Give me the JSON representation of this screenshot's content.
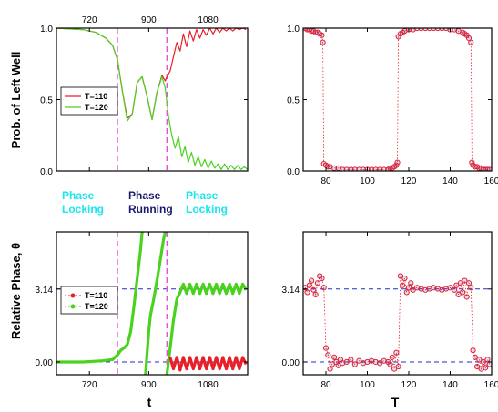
{
  "figure": {
    "top_left_ylabel": "Prob. of Left Well",
    "bottom_left_ylabel": "Relative Phase, θ",
    "bottom_left_xlabel": "t",
    "bottom_right_xlabel": "T"
  },
  "annotations": [
    {
      "lines": [
        "Phase",
        "Locking"
      ],
      "color": "#19e6ee"
    },
    {
      "lines": [
        "Phase",
        "Running"
      ],
      "color": "#1a1a6e"
    },
    {
      "lines": [
        "Phase",
        "Locking"
      ],
      "color": "#19e6ee"
    }
  ],
  "colors": {
    "red": "#e8202a",
    "green": "#4ad21e",
    "magenta": "#e84fd8",
    "blue": "#1f2fd0",
    "marker_fill": "#1f2fd0"
  },
  "chart_data": [
    {
      "id": "top-left",
      "type": "line",
      "xlim": [
        620,
        1200
      ],
      "ylim": [
        0,
        1
      ],
      "xticks_top": [
        720,
        900,
        1080
      ],
      "yticks": [
        {
          "v": 0,
          "label": "0.0"
        },
        {
          "v": 0.5,
          "label": "0.5"
        },
        {
          "v": 1,
          "label": "1.0"
        }
      ],
      "vlines": [
        805,
        955
      ],
      "legend": [
        {
          "name": "T=110",
          "color": "#e8202a"
        },
        {
          "name": "T=120",
          "color": "#4ad21e"
        }
      ],
      "series": [
        {
          "name": "T=110",
          "color": "#e8202a",
          "x": [
            620,
            700,
            740,
            770,
            790,
            805,
            820,
            835,
            850,
            865,
            880,
            895,
            910,
            925,
            940,
            950,
            955,
            965,
            975,
            985,
            995,
            1005,
            1015,
            1025,
            1035,
            1045,
            1055,
            1065,
            1075,
            1085,
            1095,
            1105,
            1115,
            1125,
            1135,
            1145,
            1155,
            1165,
            1175,
            1185,
            1195
          ],
          "y": [
            1.0,
            0.99,
            0.97,
            0.93,
            0.88,
            0.78,
            0.56,
            0.37,
            0.4,
            0.62,
            0.66,
            0.52,
            0.36,
            0.55,
            0.67,
            0.63,
            0.66,
            0.7,
            0.8,
            0.9,
            0.84,
            0.96,
            0.87,
            0.98,
            0.91,
            0.99,
            0.93,
            0.99,
            0.95,
            1.0,
            0.96,
            1.0,
            0.97,
            1.0,
            0.98,
            1.0,
            0.98,
            1.0,
            0.99,
            1.0,
            0.99
          ]
        },
        {
          "name": "T=120",
          "color": "#4ad21e",
          "x": [
            620,
            700,
            740,
            770,
            790,
            805,
            820,
            835,
            850,
            865,
            880,
            895,
            910,
            925,
            940,
            950,
            960,
            970,
            980,
            990,
            1000,
            1010,
            1020,
            1030,
            1040,
            1050,
            1060,
            1070,
            1080,
            1090,
            1100,
            1110,
            1120,
            1130,
            1140,
            1150,
            1160,
            1170,
            1180,
            1190,
            1200
          ],
          "y": [
            1.0,
            0.99,
            0.97,
            0.93,
            0.88,
            0.78,
            0.56,
            0.35,
            0.4,
            0.62,
            0.66,
            0.52,
            0.36,
            0.55,
            0.66,
            0.58,
            0.38,
            0.25,
            0.16,
            0.24,
            0.1,
            0.17,
            0.06,
            0.13,
            0.04,
            0.1,
            0.03,
            0.08,
            0.02,
            0.07,
            0.02,
            0.05,
            0.01,
            0.05,
            0.01,
            0.04,
            0.01,
            0.04,
            0.01,
            0.03,
            0.01
          ]
        }
      ]
    },
    {
      "id": "bottom-left",
      "type": "line",
      "xlim": [
        620,
        1200
      ],
      "ylim": [
        -0.55,
        5.6
      ],
      "xticks": [
        720,
        900,
        1080
      ],
      "yticks": [
        {
          "v": 0,
          "label": "0.00"
        },
        {
          "v": 3.14,
          "label": "3.14"
        }
      ],
      "hlines": [
        0,
        3.14
      ],
      "vlines": [
        805,
        955
      ],
      "legend": [
        {
          "name": "T=110",
          "color": "#e8202a"
        },
        {
          "name": "T=120",
          "color": "#4ad21e"
        }
      ],
      "series": [
        {
          "name": "T=120",
          "color": "#4ad21e",
          "x": [
            620,
            700,
            760,
            790,
            805,
            815,
            825,
            835,
            845,
            855,
            865,
            875,
            880,
            885,
            890,
            895,
            900,
            905,
            915,
            925,
            935,
            945,
            950
          ],
          "y": [
            0.0,
            0.0,
            0.05,
            0.1,
            0.3,
            0.5,
            0.6,
            0.75,
            1.3,
            2.4,
            3.6,
            4.8,
            5.6,
            null,
            -0.55,
            0.4,
            1.3,
            2.0,
            2.7,
            3.5,
            4.4,
            5.3,
            5.6
          ]
        },
        {
          "name": "T=120 (tail)",
          "color": "#4ad21e",
          "x": [
            955,
            965,
            975,
            985,
            995,
            1005,
            1015,
            1025,
            1035,
            1045,
            1055,
            1065,
            1075,
            1085,
            1095,
            1105,
            1115,
            1125,
            1135,
            1145,
            1155,
            1165,
            1175,
            1185,
            1195
          ],
          "y": [
            -0.55,
            0.6,
            1.8,
            2.7,
            3.0,
            3.35,
            2.95,
            3.35,
            2.95,
            3.35,
            2.95,
            3.35,
            2.95,
            3.35,
            2.95,
            3.35,
            2.95,
            3.35,
            2.95,
            3.35,
            2.95,
            3.35,
            2.95,
            3.35,
            3.1
          ]
        },
        {
          "name": "T=110",
          "color": "#e8202a",
          "x": [
            965,
            975,
            985,
            995,
            1005,
            1015,
            1025,
            1035,
            1045,
            1055,
            1065,
            1075,
            1085,
            1095,
            1105,
            1115,
            1125,
            1135,
            1145,
            1155,
            1165,
            1175,
            1185,
            1195
          ],
          "y": [
            0.2,
            -0.3,
            0.2,
            -0.35,
            0.2,
            -0.3,
            0.2,
            -0.3,
            0.2,
            -0.3,
            0.2,
            -0.3,
            0.2,
            -0.3,
            0.2,
            -0.3,
            0.2,
            -0.3,
            0.2,
            -0.3,
            0.2,
            -0.3,
            0.2,
            -0.1
          ]
        }
      ]
    },
    {
      "id": "top-right",
      "type": "scatter",
      "xlim": [
        69,
        160
      ],
      "ylim": [
        0,
        1
      ],
      "xticks": [
        80,
        100,
        120,
        140,
        160
      ],
      "yticks": [
        {
          "v": 0,
          "label": "0.0"
        },
        {
          "v": 0.5,
          "label": "0.5"
        },
        {
          "v": 1,
          "label": "1.0"
        }
      ],
      "series": [
        {
          "name": "points",
          "color": "#e8202a",
          "x": [
            70,
            71,
            72,
            73,
            74,
            75,
            76,
            77,
            78,
            78.5,
            79,
            80,
            81,
            82,
            84,
            86,
            88,
            90,
            92,
            94,
            96,
            98,
            100,
            102,
            104,
            106,
            108,
            110,
            111,
            112,
            113,
            114,
            114.5,
            115,
            116,
            117,
            118,
            120,
            122,
            124,
            126,
            128,
            130,
            132,
            134,
            136,
            138,
            140,
            142,
            144,
            146,
            147,
            148,
            149,
            150,
            150.5,
            151,
            152,
            153,
            154,
            155,
            156,
            157,
            158,
            159
          ],
          "y": [
            1.0,
            0.99,
            0.99,
            0.98,
            0.98,
            0.97,
            0.97,
            0.96,
            0.95,
            0.9,
            0.05,
            0.04,
            0.03,
            0.03,
            0.02,
            0.02,
            0.01,
            0.01,
            0.01,
            0.01,
            0.01,
            0.01,
            0.01,
            0.01,
            0.01,
            0.01,
            0.01,
            0.01,
            0.02,
            0.02,
            0.03,
            0.04,
            0.06,
            0.94,
            0.96,
            0.97,
            0.98,
            0.99,
            0.99,
            1.0,
            1.0,
            1.0,
            1.0,
            1.0,
            1.0,
            1.0,
            1.0,
            0.99,
            0.99,
            0.98,
            0.97,
            0.96,
            0.95,
            0.93,
            0.9,
            0.06,
            0.04,
            0.03,
            0.03,
            0.02,
            0.02,
            0.01,
            0.01,
            0.01,
            0.01
          ]
        }
      ]
    },
    {
      "id": "bottom-right",
      "type": "scatter",
      "xlim": [
        69,
        160
      ],
      "ylim": [
        -0.55,
        5.6
      ],
      "xticks": [
        80,
        100,
        120,
        140,
        160
      ],
      "yticks": [
        {
          "v": 0,
          "label": "0.00"
        },
        {
          "v": 3.14,
          "label": "3.14"
        }
      ],
      "hlines": [
        0,
        3.14
      ],
      "series": [
        {
          "name": "points",
          "color": "#e8202a",
          "x": [
            70,
            71,
            72,
            73,
            74,
            75,
            76,
            77,
            78,
            79,
            80,
            81,
            82,
            83,
            84,
            85,
            86,
            87,
            88,
            90,
            92,
            94,
            96,
            98,
            100,
            102,
            104,
            106,
            108,
            110,
            111,
            112,
            113,
            114,
            115,
            116,
            117,
            118,
            119,
            120,
            121,
            122,
            124,
            126,
            128,
            130,
            132,
            134,
            136,
            138,
            140,
            142,
            143,
            144,
            145,
            146,
            147,
            148,
            149,
            150,
            151,
            152,
            153,
            154,
            155,
            156,
            157,
            158,
            159
          ],
          "y": [
            3.2,
            3.0,
            3.3,
            3.5,
            3.1,
            2.9,
            3.4,
            3.7,
            3.6,
            3.2,
            0.6,
            0.3,
            -0.3,
            -0.1,
            0.2,
            0.0,
            -0.15,
            0.1,
            -0.05,
            0.0,
            0.1,
            -0.1,
            0.05,
            -0.05,
            0.0,
            0.05,
            0.0,
            -0.05,
            0.05,
            0.0,
            -0.1,
            0.2,
            -0.3,
            0.4,
            -0.2,
            3.7,
            3.3,
            3.6,
            3.0,
            3.2,
            3.4,
            3.1,
            3.2,
            3.15,
            3.1,
            3.15,
            3.2,
            3.15,
            3.1,
            3.15,
            3.2,
            3.1,
            3.3,
            2.9,
            3.4,
            3.0,
            3.5,
            2.8,
            3.4,
            3.2,
            0.5,
            0.2,
            -0.2,
            0.1,
            -0.3,
            0.0,
            -0.25,
            0.1,
            -0.1
          ]
        }
      ]
    }
  ]
}
